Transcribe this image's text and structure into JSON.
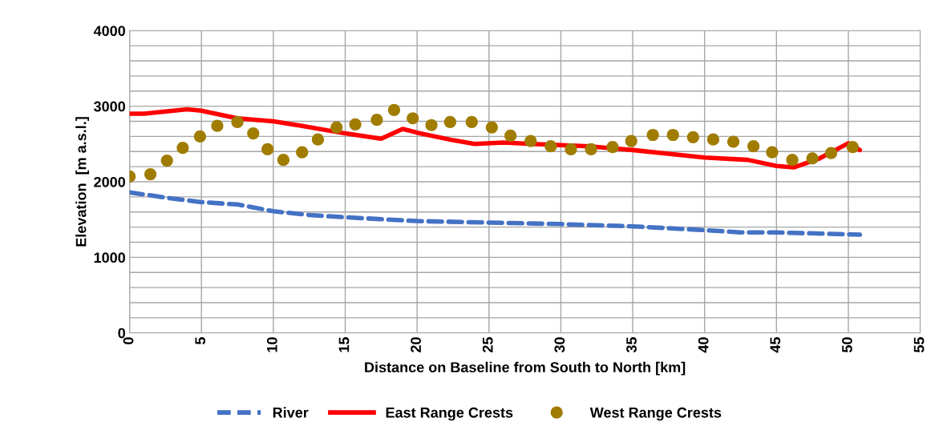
{
  "chart_data": {
    "type": "line",
    "xlabel": "Distance on Baseline from South to North [km]",
    "ylabel": "Elevation  [m a.s.l.]",
    "xlim": [
      0,
      55
    ],
    "xticks": [
      0,
      5,
      10,
      15,
      20,
      25,
      30,
      35,
      40,
      45,
      50,
      55
    ],
    "ylim": [
      0,
      4000
    ],
    "yticks": [
      0,
      {
        "value": 200,
        "label": null
      },
      {
        "value": 400,
        "label": null
      },
      {
        "value": 600,
        "label": null
      },
      {
        "value": 800,
        "label": null
      },
      1000,
      {
        "value": 1200,
        "label": null
      },
      {
        "value": 1400,
        "label": null
      },
      {
        "value": 1600,
        "label": null
      },
      {
        "value": 1800,
        "label": null
      },
      2000,
      {
        "value": 2200,
        "label": null
      },
      {
        "value": 2400,
        "label": null
      },
      {
        "value": 2600,
        "label": null
      },
      {
        "value": 2800,
        "label": null
      },
      3000,
      {
        "value": 3200,
        "label": null
      },
      {
        "value": 3400,
        "label": null
      },
      {
        "value": 3600,
        "label": null
      },
      {
        "value": 3800,
        "label": null
      },
      4000
    ],
    "grid": true,
    "legend": "bottom",
    "series": [
      {
        "name": "River",
        "color": "#4472c4",
        "line_style": "dashed",
        "marker": "none",
        "x": [
          0,
          2.5,
          5,
          7.5,
          10,
          12.5,
          15,
          20,
          25,
          30,
          35,
          40,
          42.5,
          45,
          50.8
        ],
        "values": [
          1860,
          1790,
          1730,
          1700,
          1610,
          1560,
          1530,
          1480,
          1460,
          1440,
          1410,
          1360,
          1330,
          1330,
          1300
        ]
      },
      {
        "name": "East Range Crests",
        "color": "#ff0000",
        "line_style": "solid",
        "marker": "none",
        "x": [
          0,
          1,
          4,
          5,
          7.5,
          10,
          12,
          15,
          17.5,
          19,
          20,
          22.5,
          24,
          26,
          28,
          32,
          35,
          38,
          40,
          43,
          45,
          46.2,
          48,
          50,
          50.8
        ],
        "values": [
          2900,
          2900,
          2960,
          2940,
          2840,
          2800,
          2740,
          2640,
          2570,
          2700,
          2650,
          2550,
          2500,
          2520,
          2500,
          2470,
          2420,
          2360,
          2320,
          2290,
          2210,
          2190,
          2310,
          2510,
          2420
        ]
      },
      {
        "name": "West Range Crests",
        "color": "#a07c00",
        "type": "scatter",
        "marker": "circle",
        "x": [
          0,
          1.45,
          2.6,
          3.7,
          4.9,
          6.1,
          7.5,
          8.6,
          9.6,
          10.7,
          12.0,
          13.1,
          14.4,
          15.7,
          17.2,
          18.4,
          19.7,
          21,
          22.3,
          23.8,
          25.2,
          26.5,
          27.9,
          29.3,
          30.7,
          32.1,
          33.6,
          34.9,
          36.4,
          37.8,
          39.2,
          40.6,
          42,
          43.4,
          44.7,
          46.1,
          47.5,
          48.8,
          50.3
        ],
        "values": [
          2070,
          2100,
          2280,
          2450,
          2600,
          2740,
          2790,
          2640,
          2430,
          2290,
          2390,
          2560,
          2720,
          2760,
          2820,
          2950,
          2840,
          2750,
          2790,
          2790,
          2720,
          2610,
          2540,
          2470,
          2430,
          2430,
          2460,
          2540,
          2620,
          2620,
          2590,
          2560,
          2530,
          2470,
          2390,
          2290,
          2310,
          2380,
          2460
        ]
      }
    ]
  }
}
